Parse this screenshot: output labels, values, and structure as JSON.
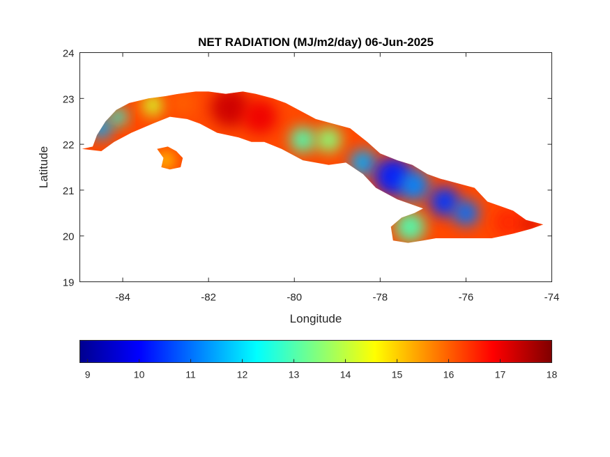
{
  "chart_data": {
    "type": "heatmap",
    "title": "NET RADIATION (MJ/m2/day) 06-Jun-2025",
    "xlabel": "Longitude",
    "ylabel": "Latitude",
    "xlim": [
      -85,
      -74
    ],
    "ylim": [
      19,
      24
    ],
    "x_ticks": [
      -84,
      -82,
      -80,
      -78,
      -76,
      -74
    ],
    "y_ticks": [
      19,
      20,
      21,
      22,
      23,
      24
    ],
    "colorbar": {
      "colormap": "jet",
      "range": [
        8.85,
        18
      ],
      "ticks": [
        9,
        10,
        11,
        12,
        13,
        14,
        15,
        16,
        17,
        18
      ]
    },
    "grid": false,
    "regions": [
      {
        "name": "main island",
        "outline": [
          [
            -84.95,
            21.9
          ],
          [
            -84.7,
            21.95
          ],
          [
            -84.6,
            22.2
          ],
          [
            -84.4,
            22.5
          ],
          [
            -84.15,
            22.75
          ],
          [
            -83.85,
            22.9
          ],
          [
            -83.4,
            23.0
          ],
          [
            -83.0,
            23.05
          ],
          [
            -82.7,
            23.1
          ],
          [
            -82.3,
            23.15
          ],
          [
            -82.0,
            23.15
          ],
          [
            -81.6,
            23.1
          ],
          [
            -81.2,
            23.15
          ],
          [
            -80.9,
            23.1
          ],
          [
            -80.5,
            23.0
          ],
          [
            -80.2,
            22.9
          ],
          [
            -79.9,
            22.75
          ],
          [
            -79.5,
            22.55
          ],
          [
            -79.1,
            22.45
          ],
          [
            -78.7,
            22.35
          ],
          [
            -78.3,
            22.05
          ],
          [
            -78.0,
            21.8
          ],
          [
            -77.6,
            21.65
          ],
          [
            -77.25,
            21.55
          ],
          [
            -76.9,
            21.35
          ],
          [
            -76.6,
            21.25
          ],
          [
            -76.2,
            21.15
          ],
          [
            -75.8,
            21.05
          ],
          [
            -75.5,
            20.75
          ],
          [
            -75.2,
            20.65
          ],
          [
            -74.9,
            20.55
          ],
          [
            -74.6,
            20.35
          ],
          [
            -74.2,
            20.25
          ],
          [
            -74.5,
            20.15
          ],
          [
            -74.9,
            20.05
          ],
          [
            -75.4,
            19.95
          ],
          [
            -75.8,
            19.95
          ],
          [
            -76.3,
            19.95
          ],
          [
            -76.7,
            19.95
          ],
          [
            -77.0,
            19.9
          ],
          [
            -77.35,
            19.85
          ],
          [
            -77.7,
            19.9
          ],
          [
            -77.75,
            20.2
          ],
          [
            -77.5,
            20.4
          ],
          [
            -77.2,
            20.5
          ],
          [
            -77.0,
            20.6
          ],
          [
            -77.6,
            20.8
          ],
          [
            -78.1,
            21.05
          ],
          [
            -78.4,
            21.35
          ],
          [
            -78.8,
            21.6
          ],
          [
            -79.2,
            21.55
          ],
          [
            -79.8,
            21.65
          ],
          [
            -80.3,
            21.9
          ],
          [
            -80.7,
            22.05
          ],
          [
            -81.0,
            22.05
          ],
          [
            -81.3,
            22.15
          ],
          [
            -81.8,
            22.25
          ],
          [
            -82.2,
            22.45
          ],
          [
            -82.5,
            22.55
          ],
          [
            -82.9,
            22.6
          ],
          [
            -83.3,
            22.45
          ],
          [
            -83.8,
            22.25
          ],
          [
            -84.2,
            22.05
          ],
          [
            -84.5,
            21.85
          ],
          [
            -84.95,
            21.9
          ]
        ]
      },
      {
        "name": "isla de la juventud",
        "outline": [
          [
            -83.2,
            21.9
          ],
          [
            -82.95,
            21.95
          ],
          [
            -82.75,
            21.85
          ],
          [
            -82.6,
            21.7
          ],
          [
            -82.65,
            21.5
          ],
          [
            -82.9,
            21.45
          ],
          [
            -83.1,
            21.5
          ],
          [
            -83.05,
            21.7
          ],
          [
            -83.2,
            21.9
          ]
        ]
      }
    ],
    "patches": [
      {
        "lon": -84.5,
        "lat": 22.35,
        "value": 11.5,
        "size": 0.25
      },
      {
        "lon": -84.1,
        "lat": 22.6,
        "value": 12.5,
        "size": 0.2
      },
      {
        "lon": -83.3,
        "lat": 22.85,
        "value": 14.2,
        "size": 0.25
      },
      {
        "lon": -82.6,
        "lat": 22.9,
        "value": 16.0,
        "size": 0.3
      },
      {
        "lon": -81.5,
        "lat": 22.8,
        "value": 17.3,
        "size": 0.45
      },
      {
        "lon": -80.8,
        "lat": 22.6,
        "value": 17.0,
        "size": 0.4
      },
      {
        "lon": -79.8,
        "lat": 22.1,
        "value": 13.0,
        "size": 0.3
      },
      {
        "lon": -79.2,
        "lat": 22.1,
        "value": 13.5,
        "size": 0.3
      },
      {
        "lon": -78.4,
        "lat": 21.6,
        "value": 11.5,
        "size": 0.3
      },
      {
        "lon": -77.7,
        "lat": 21.3,
        "value": 10.3,
        "size": 0.45
      },
      {
        "lon": -77.2,
        "lat": 21.1,
        "value": 11.2,
        "size": 0.35
      },
      {
        "lon": -76.5,
        "lat": 20.75,
        "value": 10.5,
        "size": 0.35
      },
      {
        "lon": -76.0,
        "lat": 20.5,
        "value": 11.0,
        "size": 0.3
      },
      {
        "lon": -77.3,
        "lat": 20.2,
        "value": 13.0,
        "size": 0.35
      },
      {
        "lon": -75.0,
        "lat": 20.3,
        "value": 16.5,
        "size": 0.35
      },
      {
        "lon": -74.5,
        "lat": 20.25,
        "value": 17.2,
        "size": 0.2
      },
      {
        "lon": -83.0,
        "lat": 21.65,
        "value": 14.8,
        "size": 0.2
      }
    ]
  }
}
